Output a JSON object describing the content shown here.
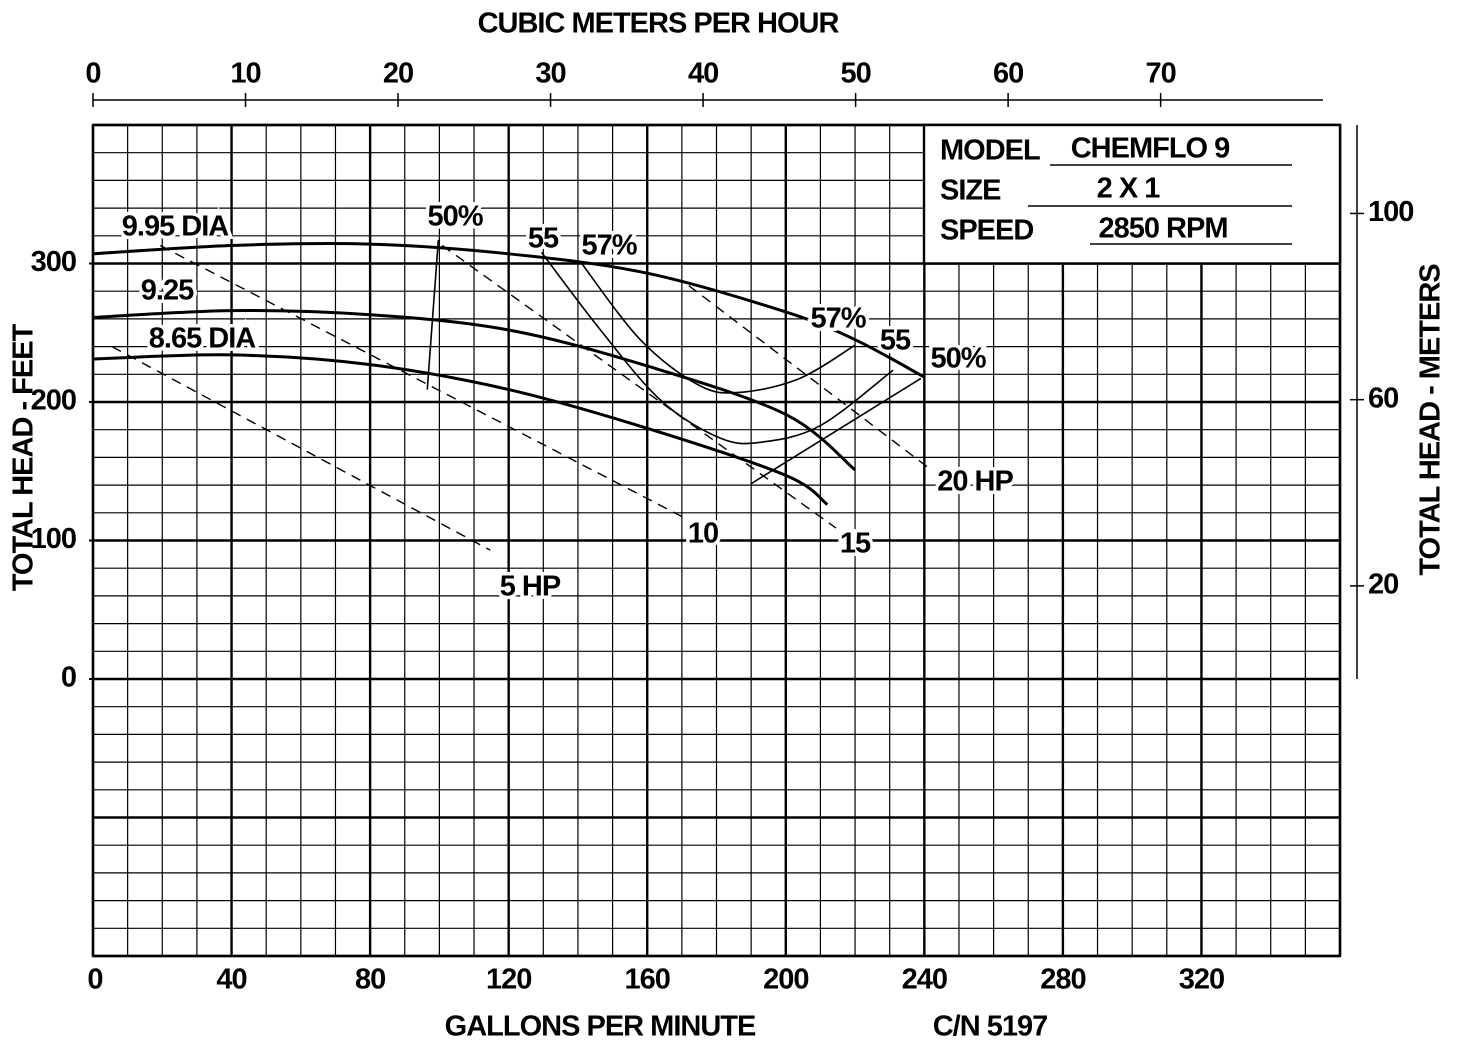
{
  "chart_data": {
    "type": "line",
    "x_label": "GALLONS PER MINUTE",
    "x2_label": "CUBIC METERS PER HOUR",
    "y_label": "TOTAL HEAD - FEET",
    "y2_label": "TOTAL HEAD - METERS",
    "note": "C/N 5197",
    "info": {
      "model_label": "MODEL",
      "model": "CHEMFLO 9",
      "size_label": "SIZE",
      "size": "2 X 1",
      "speed_label": "SPEED",
      "speed": "2850 RPM"
    },
    "xlim": [
      0,
      360
    ],
    "xticks": [
      0,
      40,
      80,
      120,
      160,
      200,
      240,
      280,
      320
    ],
    "x2lim": [
      0,
      81.76
    ],
    "x2ticks": [
      0,
      10,
      20,
      30,
      40,
      50,
      60,
      70
    ],
    "ylim": [
      -200,
      400
    ],
    "yticks": [
      0,
      100,
      200,
      300
    ],
    "y2lim": [
      0,
      119
    ],
    "y2ticks": [
      20,
      60,
      100
    ],
    "grid": {
      "minor_x": 10,
      "minor_y": 20,
      "major_x": 40,
      "major_y": 100
    },
    "series": [
      {
        "name": "9.95 DIA",
        "color": "#000000",
        "style": "solid",
        "x": [
          0,
          40,
          80,
          120,
          160,
          200,
          220,
          240
        ],
        "values": [
          307,
          313,
          314,
          307,
          293,
          265,
          245,
          218
        ]
      },
      {
        "name": "9.25",
        "color": "#000000",
        "style": "solid",
        "x": [
          0,
          40,
          80,
          120,
          160,
          200,
          220
        ],
        "values": [
          261,
          266,
          263,
          252,
          226,
          191,
          151
        ]
      },
      {
        "name": "8.65 DIA",
        "color": "#000000",
        "style": "solid",
        "x": [
          0,
          40,
          80,
          120,
          160,
          200,
          212
        ],
        "values": [
          231,
          234,
          227,
          209,
          181,
          147,
          126
        ]
      },
      {
        "name": "50%",
        "color": "#000000",
        "style": "thin",
        "x": [
          99.7,
          96.5
        ],
        "values": [
          317,
          209
        ]
      },
      {
        "name": "55",
        "color": "#000000",
        "style": "thin",
        "x": [
          129.5,
          146.5,
          164,
          181,
          193,
          210,
          231
        ],
        "values": [
          308,
          252,
          201,
          174,
          171,
          183,
          223
        ]
      },
      {
        "name": "57%",
        "color": "#000000",
        "style": "thin",
        "x": [
          140.8,
          158,
          175,
          187,
          204,
          220
        ],
        "values": [
          301,
          245,
          212,
          207,
          217,
          241
        ]
      },
      {
        "name": "50%",
        "color": "#000000",
        "style": "thin",
        "x": [
          239,
          190
        ],
        "values": [
          217,
          141
        ]
      },
      {
        "name": "5 HP",
        "color": "#000000",
        "style": "dashed",
        "x": [
          5.5,
          114.7
        ],
        "values": [
          240,
          93
        ]
      },
      {
        "name": "10",
        "color": "#000000",
        "style": "dashed",
        "x": [
          19.4,
          171
        ],
        "values": [
          313,
          116
        ]
      },
      {
        "name": "15",
        "color": "#000000",
        "style": "dashed",
        "x": [
          100.8,
          214.5
        ],
        "values": [
          313,
          109
        ]
      },
      {
        "name": "20 HP",
        "color": "#000000",
        "style": "dashed",
        "x": [
          172,
          242
        ],
        "values": [
          284,
          151
        ]
      }
    ]
  }
}
